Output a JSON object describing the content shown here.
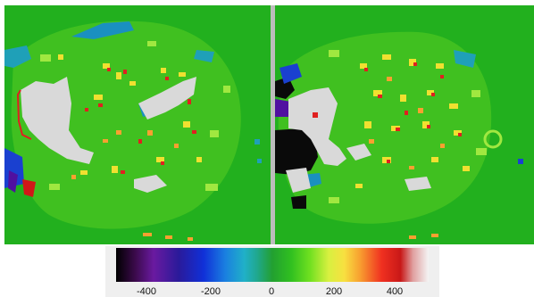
{
  "panels": [
    {
      "name": "left-map"
    },
    {
      "name": "right-map"
    }
  ],
  "colorbar": {
    "ticks": [
      "-400",
      "-200",
      "0",
      "200",
      "400"
    ]
  },
  "colors": {
    "background_green": "#22b01e",
    "white_region": "#d9d9d9",
    "divider": "#bcbcbc"
  }
}
